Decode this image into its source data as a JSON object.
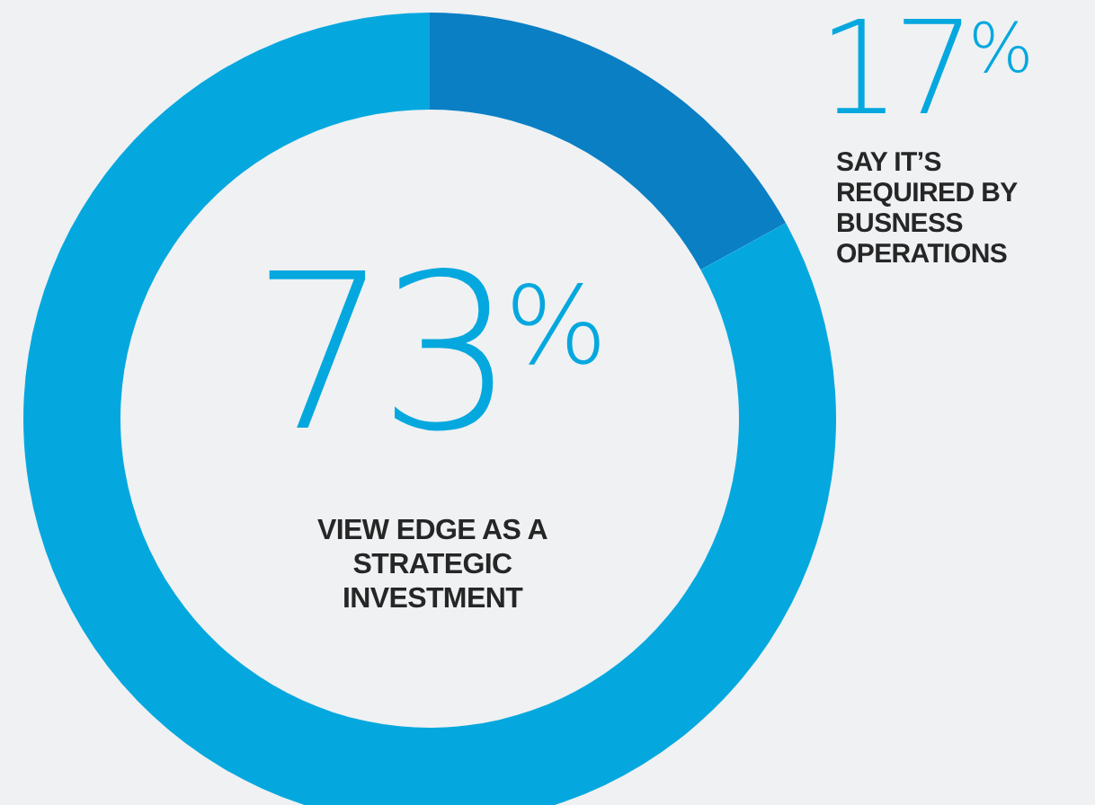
{
  "chart_data": {
    "type": "donut",
    "categories": [
      "SAY IT’S REQUIRED BY BUSNESS OPERATIONS",
      null
    ],
    "values": [
      17,
      83
    ],
    "colors": [
      "#0a7fc4",
      "#05a8de"
    ],
    "value_labels": [
      "17%",
      null
    ],
    "annotations": [
      "73%",
      "VIEW EDGE AS A STRATEGIC INVESTMENT"
    ]
  }
}
